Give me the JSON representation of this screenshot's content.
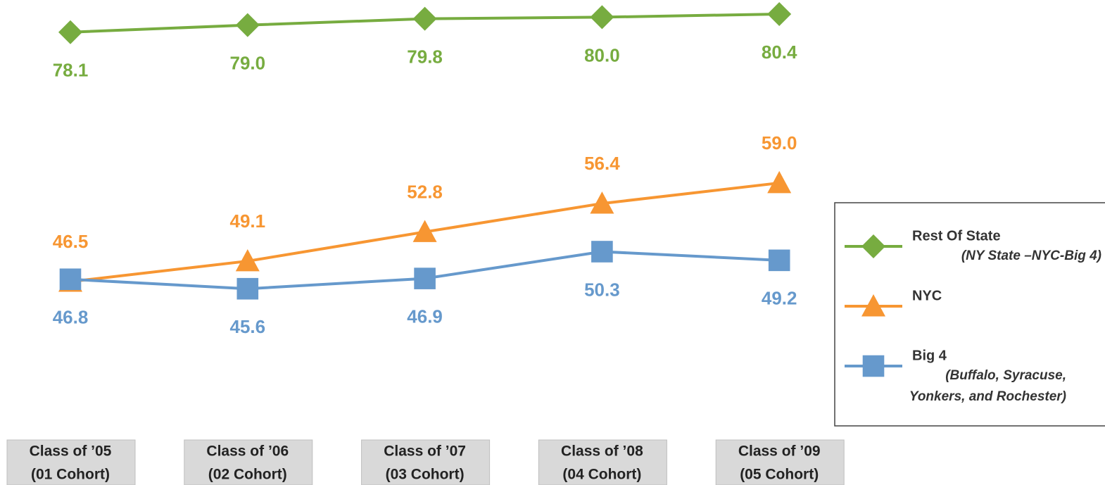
{
  "chart_data": {
    "type": "line",
    "categories": [
      [
        "Class of ’05",
        "(01 Cohort)"
      ],
      [
        "Class of ’06",
        "(02 Cohort)"
      ],
      [
        "Class of ’07",
        "(03 Cohort)"
      ],
      [
        "Class of ’08",
        "(04 Cohort)"
      ],
      [
        "Class of ’09",
        "(05 Cohort)"
      ]
    ],
    "ylim": [
      40,
      82
    ],
    "series": [
      {
        "name": "Rest Of State",
        "note": [
          "(NY State –NYC-Big 4)"
        ],
        "color": "#77ac40",
        "marker": "diamond",
        "label_position": "below",
        "values": [
          78.1,
          79.0,
          79.8,
          80.0,
          80.4
        ],
        "value_labels": [
          "78.1",
          "79.0",
          "79.8",
          "80.0",
          "80.4"
        ]
      },
      {
        "name": "NYC",
        "note": [],
        "color": "#f79632",
        "marker": "triangle",
        "label_position": "above",
        "values": [
          46.5,
          49.1,
          52.8,
          56.4,
          59.0
        ],
        "value_labels": [
          "46.5",
          "49.1",
          "52.8",
          "56.4",
          "59.0"
        ]
      },
      {
        "name": "Big 4",
        "note": [
          "(Buffalo, Syracuse,",
          "Yonkers, and Rochester)"
        ],
        "color": "#6699cc",
        "marker": "square",
        "label_position": "below",
        "values": [
          46.8,
          45.6,
          46.9,
          50.3,
          49.2
        ],
        "value_labels": [
          "46.8",
          "45.6",
          "46.9",
          "50.3",
          "49.2"
        ]
      }
    ],
    "legend": "right"
  }
}
